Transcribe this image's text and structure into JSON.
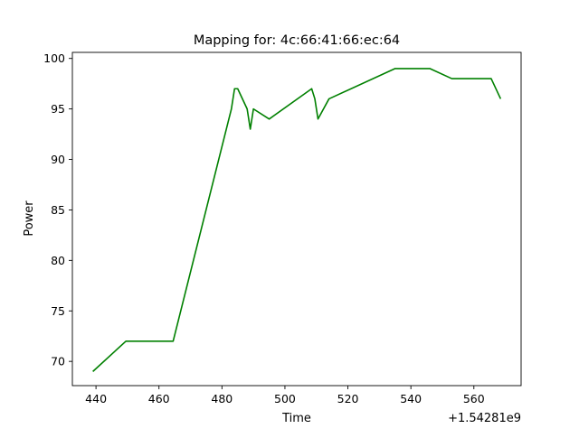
{
  "chart_data": {
    "type": "line",
    "title": "Mapping for: 4c:66:41:66:ec:64",
    "xlabel": "Time",
    "ylabel": "Power",
    "x_offset_label": "+1.54281e9",
    "xlim": [
      432.5,
      575
    ],
    "ylim": [
      67.6,
      100.6
    ],
    "xticks": [
      "440",
      "460",
      "480",
      "500",
      "520",
      "540",
      "560"
    ],
    "yticks": [
      "70",
      "75",
      "80",
      "85",
      "90",
      "95",
      "100"
    ],
    "grid": false,
    "line_color": "#008000",
    "series": [
      {
        "x": [
          439,
          449.5,
          464.5,
          483,
          484,
          485,
          488,
          489,
          490,
          495,
          508.5,
          509.5,
          510.5,
          514,
          535,
          546,
          553,
          565.5,
          568.5
        ],
        "y": [
          69,
          72,
          72,
          95,
          97,
          97,
          95,
          93,
          95,
          94,
          97,
          96,
          94,
          96,
          99,
          99,
          98,
          98,
          96
        ]
      }
    ]
  }
}
